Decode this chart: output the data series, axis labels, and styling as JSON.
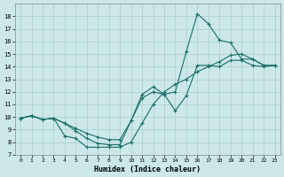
{
  "xlabel": "Humidex (Indice chaleur)",
  "bg_color": "#cce8e8",
  "grid_color": "#aacece",
  "line_color": "#1a6e6a",
  "xlim": [
    -0.5,
    23.5
  ],
  "ylim": [
    7,
    19
  ],
  "xticks": [
    0,
    1,
    2,
    3,
    4,
    5,
    6,
    7,
    8,
    9,
    10,
    11,
    12,
    13,
    14,
    15,
    16,
    17,
    18,
    19,
    20,
    21,
    22,
    23
  ],
  "yticks": [
    7,
    8,
    9,
    10,
    11,
    12,
    13,
    14,
    15,
    16,
    17,
    18
  ],
  "line1_x": [
    0,
    1,
    2,
    3,
    4,
    5,
    6,
    7,
    8,
    9,
    10,
    11,
    12,
    13,
    14,
    15,
    16,
    17,
    18,
    19,
    20,
    21,
    22,
    23
  ],
  "line1_y": [
    9.9,
    10.1,
    9.8,
    9.9,
    9.5,
    8.9,
    8.3,
    7.9,
    7.8,
    7.8,
    9.7,
    11.5,
    12.0,
    11.8,
    12.0,
    15.2,
    18.2,
    17.4,
    16.1,
    15.9,
    14.6,
    14.6,
    14.1,
    14.1
  ],
  "line2_x": [
    0,
    1,
    2,
    3,
    4,
    5,
    6,
    7,
    8,
    9,
    10,
    11,
    12,
    13,
    14,
    15,
    16,
    17,
    18,
    19,
    20,
    21,
    22,
    23
  ],
  "line2_y": [
    9.9,
    10.1,
    9.8,
    9.9,
    9.5,
    9.1,
    8.7,
    8.4,
    8.2,
    8.2,
    9.7,
    11.8,
    12.4,
    11.8,
    10.5,
    11.7,
    14.1,
    14.1,
    14.0,
    14.5,
    14.5,
    14.1,
    14.0,
    14.1
  ],
  "line3_x": [
    0,
    1,
    2,
    3,
    4,
    5,
    6,
    7,
    8,
    9,
    10,
    11,
    12,
    13,
    14,
    15,
    16,
    17,
    18,
    19,
    20,
    21,
    22,
    23
  ],
  "line3_y": [
    9.9,
    10.1,
    9.8,
    9.9,
    8.5,
    8.3,
    7.6,
    7.6,
    7.6,
    7.6,
    8.0,
    9.5,
    11.0,
    12.0,
    12.6,
    13.0,
    13.6,
    14.0,
    14.4,
    14.9,
    15.0,
    14.6,
    14.1,
    14.1
  ]
}
